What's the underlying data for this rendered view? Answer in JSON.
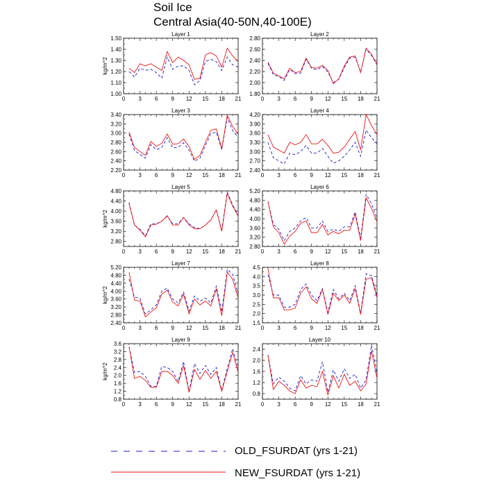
{
  "title": {
    "line1": "Soil Ice",
    "line2": "Central Asia(40-50N,40-100E)"
  },
  "legend": {
    "old_label": "OLD_FSURDAT (yrs 1-21)",
    "new_label": "NEW_FSURDAT (yrs 1-21)"
  },
  "colors": {
    "old": "#1a1acc",
    "new": "#ee1111"
  },
  "chart_data": [
    {
      "type": "line",
      "title": "Layer 1",
      "ylabel": "kg/m^2",
      "xlim": [
        0,
        21
      ],
      "ylim": [
        1.0,
        1.5
      ],
      "x": [
        1,
        2,
        3,
        4,
        5,
        6,
        7,
        8,
        9,
        10,
        11,
        12,
        13,
        14,
        15,
        16,
        17,
        18,
        19,
        20,
        21
      ],
      "xticks": [
        "0",
        "3",
        "6",
        "9",
        "12",
        "15",
        "18",
        "21"
      ],
      "yticks": [
        "1.00",
        "1.10",
        "1.20",
        "1.30",
        "1.40",
        "1.50"
      ],
      "series": [
        {
          "name": "OLD_FSURDAT (yrs 1-21)",
          "style": "dashed",
          "values": [
            1.2,
            1.15,
            1.23,
            1.21,
            1.22,
            1.19,
            1.14,
            1.33,
            1.22,
            1.25,
            1.25,
            1.21,
            1.08,
            1.12,
            1.29,
            1.31,
            1.29,
            1.21,
            1.33,
            1.26,
            1.24
          ]
        },
        {
          "name": "NEW_FSURDAT (yrs 1-21)",
          "style": "solid",
          "values": [
            1.23,
            1.19,
            1.27,
            1.25,
            1.27,
            1.24,
            1.21,
            1.38,
            1.28,
            1.33,
            1.3,
            1.26,
            1.13,
            1.14,
            1.35,
            1.37,
            1.34,
            1.24,
            1.41,
            1.34,
            1.29
          ]
        }
      ]
    },
    {
      "type": "line",
      "title": "Layer 2",
      "ylabel": "",
      "xlim": [
        0,
        21
      ],
      "ylim": [
        1.8,
        2.8
      ],
      "x": [
        1,
        2,
        3,
        4,
        5,
        6,
        7,
        8,
        9,
        10,
        11,
        12,
        13,
        14,
        15,
        16,
        17,
        18,
        19,
        20,
        21
      ],
      "xticks": [
        "0",
        "3",
        "6",
        "9",
        "12",
        "15",
        "18",
        "21"
      ],
      "yticks": [
        "1.80",
        "2.00",
        "2.20",
        "2.40",
        "2.60",
        "2.80"
      ],
      "series": [
        {
          "name": "OLD_FSURDAT (yrs 1-21)",
          "style": "dashed",
          "values": [
            2.35,
            2.14,
            2.11,
            2.04,
            2.24,
            2.16,
            2.17,
            2.42,
            2.26,
            2.23,
            2.29,
            2.19,
            2.0,
            2.06,
            2.27,
            2.44,
            2.46,
            2.19,
            2.6,
            2.49,
            2.32
          ]
        },
        {
          "name": "NEW_FSURDAT (yrs 1-21)",
          "style": "solid",
          "values": [
            2.37,
            2.17,
            2.12,
            2.07,
            2.26,
            2.18,
            2.2,
            2.44,
            2.27,
            2.26,
            2.31,
            2.22,
            1.98,
            2.07,
            2.3,
            2.46,
            2.48,
            2.18,
            2.62,
            2.51,
            2.33
          ]
        }
      ]
    },
    {
      "type": "line",
      "title": "Layer 3",
      "ylabel": "",
      "xlim": [
        0,
        21
      ],
      "ylim": [
        2.2,
        3.4
      ],
      "x": [
        1,
        2,
        3,
        4,
        5,
        6,
        7,
        8,
        9,
        10,
        11,
        12,
        13,
        14,
        15,
        16,
        17,
        18,
        19,
        20,
        21
      ],
      "xticks": [
        "0",
        "3",
        "6",
        "9",
        "12",
        "15",
        "18",
        "21"
      ],
      "yticks": [
        "2.20",
        "2.40",
        "2.60",
        "2.80",
        "3.00",
        "3.20",
        "3.40"
      ],
      "series": [
        {
          "name": "OLD_FSURDAT (yrs 1-21)",
          "style": "dashed",
          "values": [
            2.98,
            2.62,
            2.54,
            2.46,
            2.75,
            2.64,
            2.69,
            2.9,
            2.68,
            2.69,
            2.79,
            2.63,
            2.39,
            2.46,
            2.73,
            2.99,
            3.02,
            2.64,
            3.34,
            3.05,
            2.91
          ]
        },
        {
          "name": "NEW_FSURDAT (yrs 1-21)",
          "style": "solid",
          "values": [
            3.02,
            2.69,
            2.6,
            2.52,
            2.82,
            2.71,
            2.78,
            2.98,
            2.76,
            2.77,
            2.87,
            2.71,
            2.43,
            2.52,
            2.8,
            3.06,
            3.09,
            2.66,
            3.39,
            3.14,
            2.98
          ]
        }
      ]
    },
    {
      "type": "line",
      "title": "Layer 4",
      "ylabel": "",
      "xlim": [
        0,
        21
      ],
      "ylim": [
        2.4,
        4.2
      ],
      "x": [
        1,
        2,
        3,
        4,
        5,
        6,
        7,
        8,
        9,
        10,
        11,
        12,
        13,
        14,
        15,
        16,
        17,
        18,
        19,
        20,
        21
      ],
      "xticks": [
        "0",
        "3",
        "6",
        "9",
        "12",
        "15",
        "18",
        "21"
      ],
      "yticks": [
        "2.40",
        "2.70",
        "3.00",
        "3.30",
        "3.60",
        "3.90",
        "4.20"
      ],
      "series": [
        {
          "name": "OLD_FSURDAT (yrs 1-21)",
          "style": "dashed",
          "values": [
            3.3,
            2.8,
            2.7,
            2.6,
            2.95,
            2.9,
            3.0,
            3.2,
            2.95,
            2.95,
            3.1,
            2.85,
            2.62,
            2.7,
            2.85,
            3.05,
            3.3,
            2.85,
            3.7,
            3.45,
            3.25
          ]
        },
        {
          "name": "NEW_FSURDAT (yrs 1-21)",
          "style": "solid",
          "values": [
            3.55,
            3.15,
            3.05,
            2.95,
            3.3,
            3.22,
            3.3,
            3.55,
            3.25,
            3.25,
            3.4,
            3.2,
            2.95,
            2.98,
            3.15,
            3.4,
            3.65,
            3.05,
            4.2,
            3.85,
            3.55
          ]
        }
      ]
    },
    {
      "type": "line",
      "title": "Layer 5",
      "ylabel": "kg/m^2",
      "xlim": [
        0,
        21
      ],
      "ylim": [
        2.6,
        4.8
      ],
      "x": [
        1,
        2,
        3,
        4,
        5,
        6,
        7,
        8,
        9,
        10,
        11,
        12,
        13,
        14,
        15,
        16,
        17,
        18,
        19,
        20,
        21
      ],
      "xticks": [
        "0",
        "3",
        "6",
        "9",
        "12",
        "15",
        "18",
        "21"
      ],
      "yticks": [
        "2.80",
        "3.20",
        "3.60",
        "4.00",
        "4.40",
        "4.80"
      ],
      "series": [
        {
          "name": "OLD_FSURDAT (yrs 1-21)",
          "style": "dashed",
          "values": [
            4.35,
            3.45,
            3.28,
            3.02,
            3.5,
            3.5,
            3.6,
            3.8,
            3.5,
            3.5,
            3.75,
            3.5,
            3.35,
            3.3,
            3.45,
            3.65,
            4.05,
            3.25,
            4.75,
            4.25,
            3.85
          ]
        },
        {
          "name": "NEW_FSURDAT (yrs 1-21)",
          "style": "solid",
          "values": [
            4.3,
            3.45,
            3.25,
            2.98,
            3.45,
            3.48,
            3.6,
            3.82,
            3.45,
            3.45,
            3.75,
            3.45,
            3.3,
            3.3,
            3.45,
            3.65,
            4.05,
            3.2,
            4.7,
            4.2,
            3.8
          ]
        }
      ]
    },
    {
      "type": "line",
      "title": "Layer 6",
      "ylabel": "",
      "xlim": [
        0,
        21
      ],
      "ylim": [
        2.8,
        5.2
      ],
      "x": [
        1,
        2,
        3,
        4,
        5,
        6,
        7,
        8,
        9,
        10,
        11,
        12,
        13,
        14,
        15,
        16,
        17,
        18,
        19,
        20,
        21
      ],
      "xticks": [
        "0",
        "3",
        "6",
        "9",
        "12",
        "15",
        "18",
        "21"
      ],
      "yticks": [
        "2.80",
        "3.20",
        "3.60",
        "4.00",
        "4.40",
        "4.80",
        "5.20"
      ],
      "series": [
        {
          "name": "OLD_FSURDAT (yrs 1-21)",
          "style": "dashed",
          "values": [
            4.75,
            3.75,
            3.55,
            3.05,
            3.45,
            3.6,
            3.9,
            4.05,
            3.6,
            3.6,
            3.9,
            3.45,
            3.55,
            3.45,
            3.65,
            3.65,
            4.3,
            3.15,
            5.05,
            4.65,
            4.0
          ]
        },
        {
          "name": "NEW_FSURDAT (yrs 1-21)",
          "style": "solid",
          "values": [
            4.75,
            3.65,
            3.4,
            2.9,
            3.25,
            3.45,
            3.8,
            3.9,
            3.4,
            3.4,
            3.75,
            3.3,
            3.45,
            3.35,
            3.5,
            3.5,
            4.2,
            3.05,
            4.9,
            4.45,
            3.85
          ]
        }
      ]
    },
    {
      "type": "line",
      "title": "Layer 7",
      "ylabel": "kg/m^2",
      "xlim": [
        0,
        21
      ],
      "ylim": [
        2.4,
        5.2
      ],
      "x": [
        1,
        2,
        3,
        4,
        5,
        6,
        7,
        8,
        9,
        10,
        11,
        12,
        13,
        14,
        15,
        16,
        17,
        18,
        19,
        20,
        21
      ],
      "xticks": [
        "0",
        "3",
        "6",
        "9",
        "12",
        "15",
        "18",
        "21"
      ],
      "yticks": [
        "2.40",
        "2.80",
        "3.20",
        "3.60",
        "4.00",
        "4.40",
        "4.80",
        "5.20"
      ],
      "series": [
        {
          "name": "OLD_FSURDAT (yrs 1-21)",
          "style": "dashed",
          "values": [
            4.6,
            3.7,
            3.65,
            2.85,
            3.05,
            3.3,
            4.0,
            4.15,
            3.6,
            3.4,
            3.95,
            3.0,
            3.75,
            3.5,
            3.65,
            3.4,
            4.25,
            2.95,
            5.1,
            4.85,
            3.85
          ]
        },
        {
          "name": "NEW_FSURDAT (yrs 1-21)",
          "style": "solid",
          "values": [
            4.95,
            3.55,
            3.5,
            2.7,
            2.95,
            3.15,
            3.85,
            4.05,
            3.45,
            3.25,
            3.85,
            2.85,
            3.6,
            3.3,
            3.5,
            3.25,
            4.1,
            2.75,
            4.95,
            4.6,
            3.65
          ]
        }
      ]
    },
    {
      "type": "line",
      "title": "Layer 8",
      "ylabel": "",
      "xlim": [
        0,
        21
      ],
      "ylim": [
        1.5,
        4.5
      ],
      "x": [
        1,
        2,
        3,
        4,
        5,
        6,
        7,
        8,
        9,
        10,
        11,
        12,
        13,
        14,
        15,
        16,
        17,
        18,
        19,
        20,
        21
      ],
      "xticks": [
        "0",
        "3",
        "6",
        "9",
        "12",
        "15",
        "18",
        "21"
      ],
      "yticks": [
        "1.5",
        "2.0",
        "2.5",
        "3.0",
        "3.5",
        "4.0",
        "4.5"
      ],
      "series": [
        {
          "name": "OLD_FSURDAT (yrs 1-21)",
          "style": "dashed",
          "values": [
            4.1,
            3.0,
            3.0,
            2.35,
            2.35,
            2.5,
            3.3,
            3.6,
            3.0,
            2.7,
            3.35,
            2.05,
            3.3,
            2.8,
            3.1,
            2.7,
            3.5,
            2.0,
            4.15,
            4.05,
            3.0
          ]
        },
        {
          "name": "NEW_FSURDAT (yrs 1-21)",
          "style": "solid",
          "values": [
            4.45,
            2.85,
            2.85,
            2.2,
            2.2,
            2.3,
            3.1,
            3.45,
            2.8,
            2.55,
            3.3,
            1.95,
            3.1,
            2.7,
            3.0,
            2.55,
            3.35,
            1.95,
            3.85,
            3.95,
            2.85
          ]
        }
      ]
    },
    {
      "type": "line",
      "title": "Layer 9",
      "ylabel": "kg/m^2",
      "xlim": [
        0,
        21
      ],
      "ylim": [
        0.8,
        3.6
      ],
      "x": [
        1,
        2,
        3,
        4,
        5,
        6,
        7,
        8,
        9,
        10,
        11,
        12,
        13,
        14,
        15,
        16,
        17,
        18,
        19,
        20,
        21
      ],
      "xticks": [
        "0",
        "3",
        "6",
        "9",
        "12",
        "15",
        "18",
        "21"
      ],
      "yticks": [
        "0.8",
        "1.2",
        "1.6",
        "2.0",
        "2.4",
        "2.8",
        "3.2",
        "3.6"
      ],
      "series": [
        {
          "name": "OLD_FSURDAT (yrs 1-21)",
          "style": "dashed",
          "values": [
            3.45,
            2.15,
            2.2,
            1.95,
            1.45,
            1.45,
            2.45,
            2.4,
            2.2,
            1.7,
            2.7,
            1.2,
            2.6,
            2.1,
            2.5,
            2.05,
            2.4,
            1.25,
            2.35,
            3.35,
            2.35
          ]
        },
        {
          "name": "NEW_FSURDAT (yrs 1-21)",
          "style": "solid",
          "values": [
            3.45,
            1.85,
            1.95,
            1.75,
            1.4,
            1.4,
            2.2,
            2.2,
            2.0,
            1.6,
            2.5,
            1.15,
            2.3,
            1.8,
            2.25,
            1.85,
            2.2,
            1.2,
            2.2,
            3.15,
            2.15
          ]
        }
      ]
    },
    {
      "type": "line",
      "title": "Layer 10",
      "ylabel": "",
      "xlim": [
        0,
        21
      ],
      "ylim": [
        0.6,
        2.6
      ],
      "x": [
        1,
        2,
        3,
        4,
        5,
        6,
        7,
        8,
        9,
        10,
        11,
        12,
        13,
        14,
        15,
        16,
        17,
        18,
        19,
        20,
        21
      ],
      "xticks": [
        "0",
        "3",
        "6",
        "9",
        "12",
        "15",
        "18",
        "21"
      ],
      "yticks": [
        "0.8",
        "1.2",
        "1.6",
        "2.0",
        "2.4"
      ],
      "series": [
        {
          "name": "OLD_FSURDAT (yrs 1-21)",
          "style": "dashed",
          "values": [
            2.2,
            1.15,
            1.4,
            1.25,
            1.0,
            0.9,
            1.45,
            1.15,
            1.3,
            1.25,
            1.95,
            0.85,
            1.65,
            1.25,
            1.7,
            1.35,
            1.5,
            1.0,
            1.3,
            2.55,
            1.55
          ]
        },
        {
          "name": "NEW_FSURDAT (yrs 1-21)",
          "style": "solid",
          "values": [
            2.2,
            0.95,
            1.25,
            1.1,
            0.9,
            0.8,
            1.3,
            1.0,
            1.1,
            1.05,
            1.6,
            0.75,
            1.45,
            1.0,
            1.5,
            1.1,
            1.25,
            0.9,
            1.15,
            2.35,
            1.35
          ]
        }
      ]
    }
  ]
}
